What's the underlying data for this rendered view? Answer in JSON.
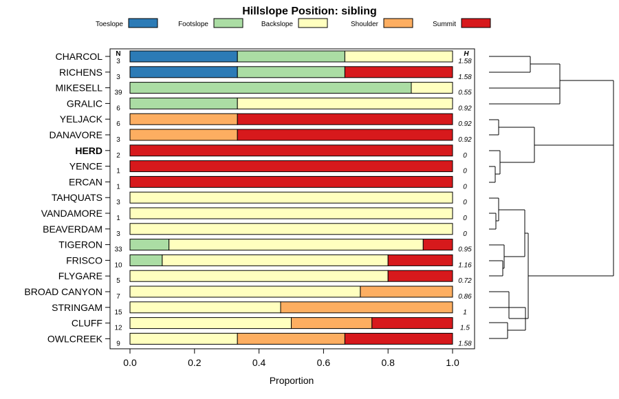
{
  "chart_data": {
    "type": "bar",
    "orientation": "horizontal-stacked",
    "title": "Hillslope Position: sibling",
    "xlabel": "Proportion",
    "xlim": [
      0,
      1
    ],
    "xticks": [
      "0.0",
      "0.2",
      "0.4",
      "0.6",
      "0.8",
      "1.0"
    ],
    "n_header": "N",
    "h_header": "H",
    "highlight": "HERD",
    "legend_position": "top",
    "legend": [
      {
        "name": "Toeslope",
        "color": "#2c7bb6"
      },
      {
        "name": "Footslope",
        "color": "#abdda4"
      },
      {
        "name": "Backslope",
        "color": "#ffffbf"
      },
      {
        "name": "Shoulder",
        "color": "#fdae61"
      },
      {
        "name": "Summit",
        "color": "#d7191c"
      }
    ],
    "categories": [
      "CHARCOL",
      "RICHENS",
      "MIKESELL",
      "GRALIC",
      "YELJACK",
      "DANAVORE",
      "HERD",
      "YENCE",
      "ERCAN",
      "TAHQUATS",
      "VANDAMORE",
      "BEAVERDAM",
      "TIGERON",
      "FRISCO",
      "FLYGARE",
      "BROAD CANYON",
      "STRINGAM",
      "CLUFF",
      "OWLCREEK"
    ],
    "n": [
      "3",
      "3",
      "39",
      "6",
      "6",
      "3",
      "2",
      "1",
      "1",
      "3",
      "1",
      "3",
      "33",
      "10",
      "5",
      "7",
      "15",
      "12",
      "9"
    ],
    "h": [
      "1.58",
      "1.58",
      "0.55",
      "0.92",
      "0.92",
      "0.92",
      "0",
      "0",
      "0",
      "0",
      "0",
      "0",
      "0.95",
      "1.16",
      "0.72",
      "0.86",
      "1",
      "1.5",
      "1.58"
    ],
    "series": [
      {
        "name": "Toeslope",
        "values": [
          0.333,
          0.333,
          0,
          0,
          0,
          0,
          0,
          0,
          0,
          0,
          0,
          0,
          0,
          0,
          0,
          0,
          0,
          0,
          0
        ]
      },
      {
        "name": "Footslope",
        "values": [
          0.333,
          0.333,
          0.872,
          0.333,
          0,
          0,
          0,
          0,
          0,
          0,
          0,
          0,
          0.121,
          0.1,
          0,
          0,
          0,
          0,
          0
        ]
      },
      {
        "name": "Backslope",
        "values": [
          0.334,
          0,
          0.128,
          0.667,
          0,
          0,
          0,
          0,
          0,
          1,
          1,
          1,
          0.788,
          0.7,
          0.8,
          0.714,
          0.467,
          0.5,
          0.333
        ]
      },
      {
        "name": "Shoulder",
        "values": [
          0,
          0,
          0,
          0,
          0.333,
          0.333,
          0,
          0,
          0,
          0,
          0,
          0,
          0,
          0,
          0,
          0.286,
          0.533,
          0.25,
          0.333
        ]
      },
      {
        "name": "Summit",
        "values": [
          0,
          0.334,
          0,
          0,
          0.667,
          0.667,
          1,
          1,
          1,
          0,
          0,
          0,
          0.091,
          0.2,
          0.2,
          0,
          0,
          0.25,
          0.334
        ]
      }
    ]
  }
}
